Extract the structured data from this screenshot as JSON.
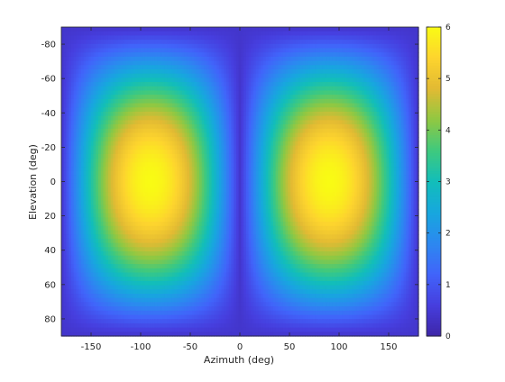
{
  "chart_data": {
    "type": "heatmap",
    "title": "",
    "xlabel": "Azimuth (deg)",
    "ylabel": "Elevation (deg)",
    "xlim": [
      -180,
      180
    ],
    "ylim": [
      -90,
      90
    ],
    "y_reversed": true,
    "xticks": [
      -150,
      -100,
      -50,
      0,
      50,
      100,
      150
    ],
    "yticks": [
      -80,
      -60,
      -40,
      -20,
      0,
      20,
      40,
      60,
      80
    ],
    "colorbar": {
      "min": 0,
      "max": 6,
      "ticks": [
        0,
        1,
        2,
        3,
        4,
        5,
        6
      ],
      "colormap": "parula"
    },
    "peaks": [
      {
        "azimuth": -90,
        "elevation": 0,
        "value": 6
      },
      {
        "azimuth": 90,
        "elevation": 0,
        "value": 6
      }
    ],
    "minimum_value": 0.4,
    "grid": false
  }
}
